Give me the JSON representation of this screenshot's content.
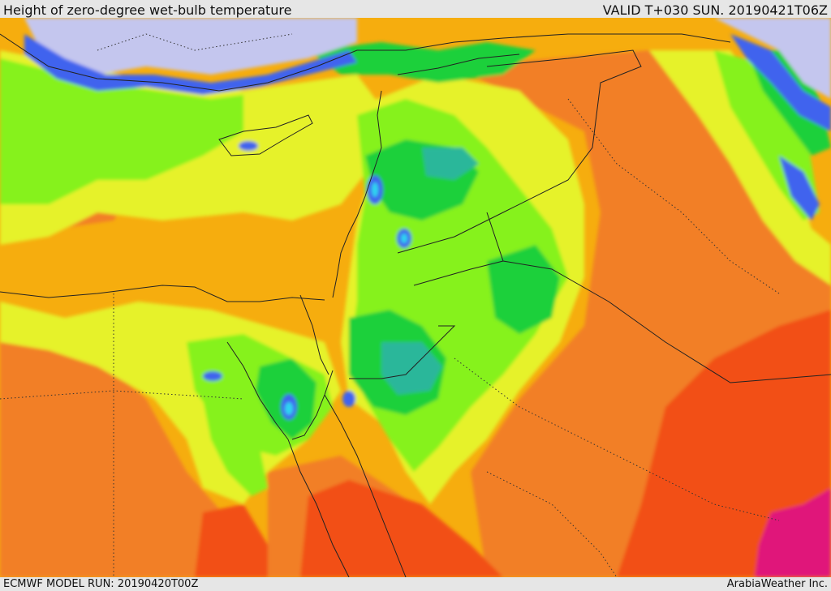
{
  "header": {
    "title": "Height of zero-degree wet-bulb temperature",
    "valid_time": "VALID T+030 SUN. 20190421T06Z"
  },
  "footer": {
    "model_run": "ECMWF MODEL RUN: 20190420T00Z",
    "credit": "ArabiaWeather Inc."
  },
  "legend_colors": {
    "very_low": "#c4c6ee",
    "low": "#3f63ee",
    "cyan": "#2fd6f0",
    "teal": "#2bb79a",
    "green": "#1fd03a",
    "light_green": "#86f21a",
    "yellow": "#e6f22a",
    "orange_yellow": "#f6ad0e",
    "orange": "#f27f26",
    "red": "#f24f18",
    "magenta": "#e0197a"
  }
}
